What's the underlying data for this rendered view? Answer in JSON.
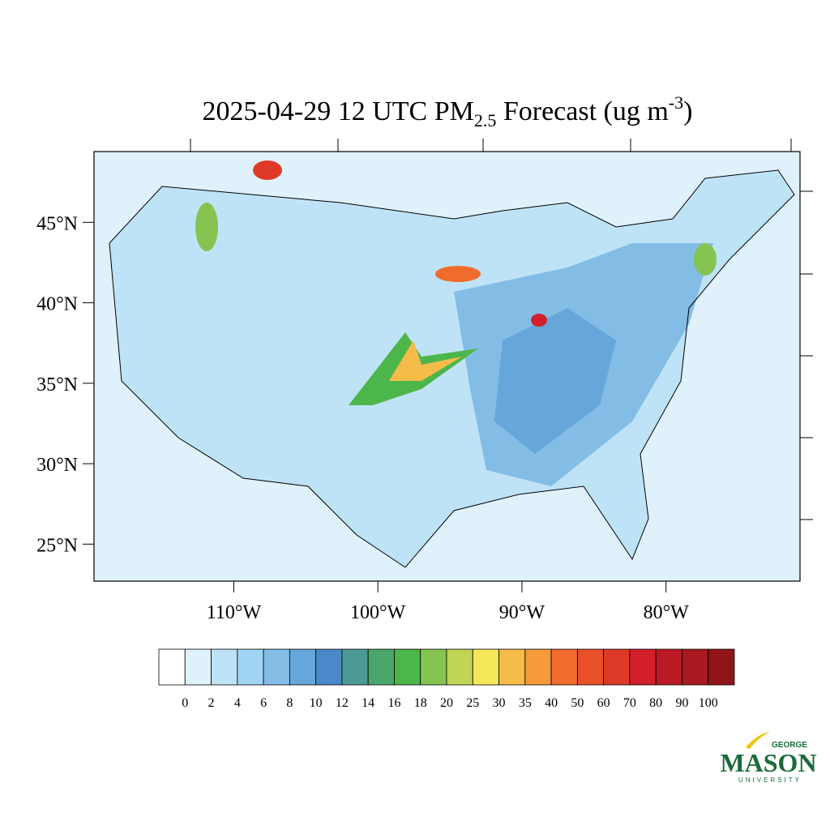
{
  "title": {
    "main": "2025-04-29 12 UTC PM",
    "subscript": "2.5",
    "middle": " Forecast (ug m",
    "superscript": "-3",
    "end": ")"
  },
  "map": {
    "lon_range": [
      -119.7,
      -70.7
    ],
    "lat_range": [
      22.7,
      49.4
    ],
    "lat_ticks": [
      {
        "value": 45,
        "label": "45°N"
      },
      {
        "value": 40,
        "label": "40°N"
      },
      {
        "value": 35,
        "label": "35°N"
      },
      {
        "value": 30,
        "label": "30°N"
      },
      {
        "value": 25,
        "label": "25°N"
      }
    ],
    "lon_ticks": [
      {
        "value": -110,
        "label": "110°W"
      },
      {
        "value": -100,
        "label": "100°W"
      },
      {
        "value": -90,
        "label": "90°W"
      },
      {
        "value": -80,
        "label": "80°W"
      }
    ]
  },
  "colorbar": {
    "levels": [
      0,
      2,
      4,
      6,
      8,
      10,
      12,
      14,
      16,
      18,
      20,
      25,
      30,
      35,
      40,
      50,
      60,
      70,
      80,
      90,
      100
    ],
    "colors": [
      "#ffffff",
      "#dff1fb",
      "#bfe3f6",
      "#9fd5f2",
      "#83bde6",
      "#66a6da",
      "#4a89c8",
      "#4b9a98",
      "#4aa66a",
      "#4db64a",
      "#85c450",
      "#c2d455",
      "#f6e65a",
      "#f6bc4a",
      "#f69a3c",
      "#f16c2c",
      "#e8502a",
      "#df3a28",
      "#d21f2a",
      "#bb1a24",
      "#a81a20",
      "#8f1518"
    ]
  },
  "logo": {
    "top": "GEORGE",
    "main": "MASON",
    "bottom": "UNIVERSITY"
  }
}
